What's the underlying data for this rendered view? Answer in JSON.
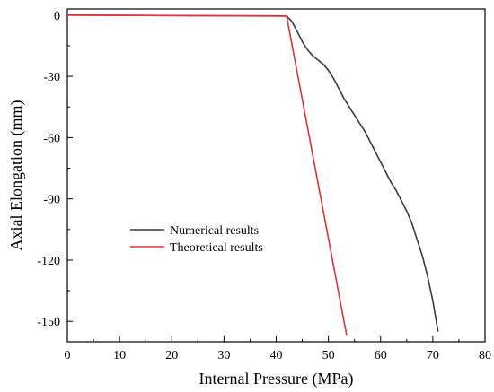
{
  "chart_data": {
    "type": "line",
    "xlabel": "Internal Pressure (MPa)",
    "ylabel": "Axial Elongation (mm)",
    "xlim": [
      0,
      80
    ],
    "ylim": [
      -160,
      3
    ],
    "xticks": [
      0,
      10,
      20,
      30,
      40,
      50,
      60,
      70,
      80
    ],
    "yticks": [
      0,
      -30,
      -60,
      -90,
      -120,
      -150
    ],
    "grid": false,
    "legend_position": "center-left",
    "series": [
      {
        "name": "Numerical results",
        "color": "#3a3a3a",
        "points": [
          [
            0,
            0
          ],
          [
            10,
            -0.1
          ],
          [
            20,
            -0.2
          ],
          [
            30,
            -0.3
          ],
          [
            40,
            -0.4
          ],
          [
            42,
            -0.5
          ],
          [
            43,
            -3
          ],
          [
            44,
            -8
          ],
          [
            45,
            -13
          ],
          [
            46,
            -17
          ],
          [
            47,
            -20
          ],
          [
            48,
            -22
          ],
          [
            49,
            -24
          ],
          [
            50,
            -27
          ],
          [
            51,
            -31
          ],
          [
            52,
            -36
          ],
          [
            53,
            -41
          ],
          [
            54,
            -45
          ],
          [
            55,
            -49
          ],
          [
            56,
            -53
          ],
          [
            57,
            -57
          ],
          [
            58,
            -62
          ],
          [
            59,
            -67
          ],
          [
            60,
            -72
          ],
          [
            61,
            -77
          ],
          [
            62,
            -82
          ],
          [
            63,
            -86
          ],
          [
            64,
            -91
          ],
          [
            65,
            -96
          ],
          [
            66,
            -102
          ],
          [
            67,
            -110
          ],
          [
            68,
            -118
          ],
          [
            69,
            -128
          ],
          [
            70,
            -140
          ],
          [
            71,
            -155
          ]
        ]
      },
      {
        "name": "Theoretical results",
        "color": "#e8313a",
        "points": [
          [
            0,
            0
          ],
          [
            42,
            -0.5
          ],
          [
            53.5,
            -157
          ]
        ]
      }
    ]
  }
}
